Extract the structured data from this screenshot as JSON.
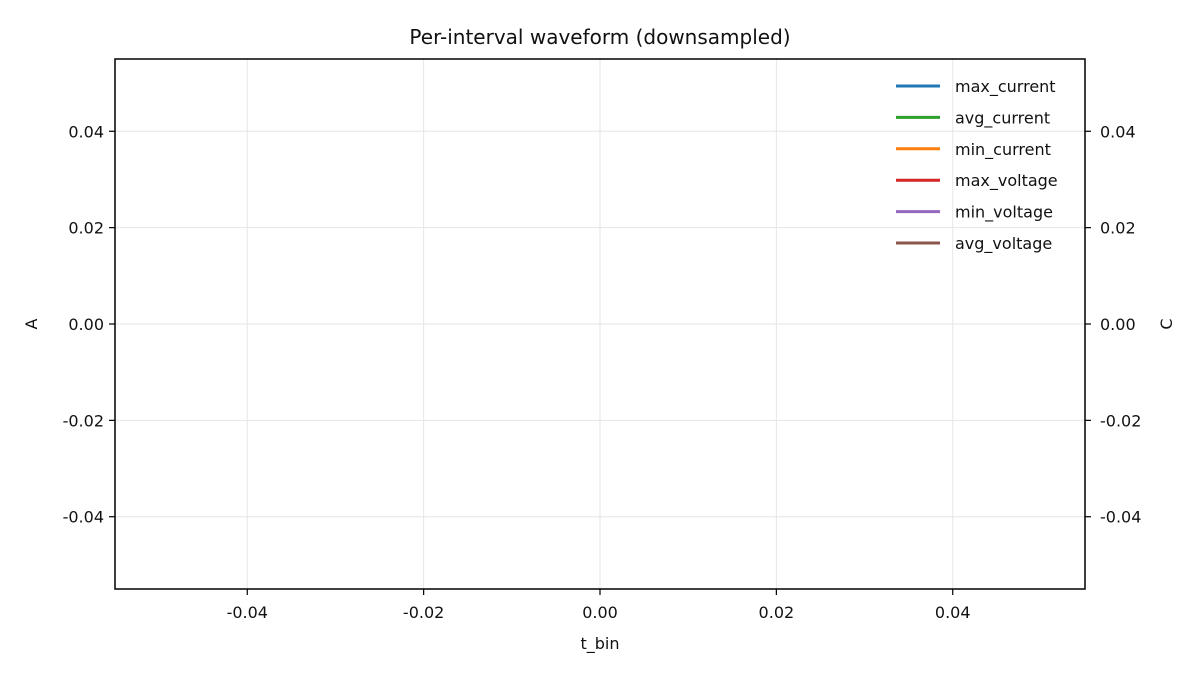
{
  "chart_data": {
    "type": "line",
    "title": "Per-interval waveform (downsampled)",
    "xlabel": "t_bin",
    "ylabel": "A",
    "y2label": "C",
    "xlim": [
      -0.055,
      0.055
    ],
    "ylim": [
      -0.055,
      0.055
    ],
    "y2lim": [
      -0.055,
      0.055
    ],
    "x_ticks": [
      -0.04,
      -0.02,
      0.0,
      0.02,
      0.04
    ],
    "x_tick_labels": [
      "-0.04",
      "-0.02",
      "0.00",
      "0.02",
      "0.04"
    ],
    "y_ticks": [
      0.04,
      0.02,
      0.0,
      -0.02,
      -0.04
    ],
    "y_tick_labels": [
      "0.04",
      "0.02",
      "0.00",
      "-0.02",
      "-0.04"
    ],
    "y2_ticks": [
      0.04,
      0.02,
      0.0,
      -0.02,
      -0.04
    ],
    "y2_tick_labels": [
      "0.04",
      "0.02",
      "0.00",
      "-0.02",
      "-0.04"
    ],
    "grid": true,
    "legend_position": "top-right",
    "series": [
      {
        "name": "max_current",
        "color": "#1f77b4",
        "axis": "left",
        "x": [],
        "y": []
      },
      {
        "name": "avg_current",
        "color": "#2ca02c",
        "axis": "left",
        "x": [],
        "y": []
      },
      {
        "name": "min_current",
        "color": "#ff7f0e",
        "axis": "left",
        "x": [],
        "y": []
      },
      {
        "name": "max_voltage",
        "color": "#d62728",
        "axis": "right",
        "x": [],
        "y": []
      },
      {
        "name": "min_voltage",
        "color": "#9467bd",
        "axis": "right",
        "x": [],
        "y": []
      },
      {
        "name": "avg_voltage",
        "color": "#8c564b",
        "axis": "right",
        "x": [],
        "y": []
      }
    ]
  }
}
